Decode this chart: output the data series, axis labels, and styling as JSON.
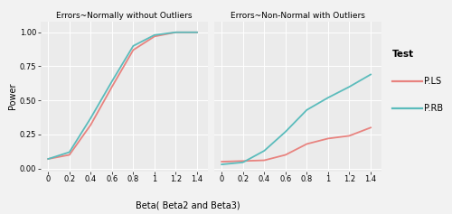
{
  "panel1_title": "Errors~Normally without Outliers",
  "panel2_title": "Errors~Non-Normal with Outliers",
  "xlabel": "Beta( Beta2 and Beta3)",
  "ylabel": "Power",
  "legend_title": "Test",
  "legend_labels": [
    "P.LS",
    "P.RB"
  ],
  "color_pls": "#E8837F",
  "color_prb": "#5BBCBC",
  "x_ticks": [
    0,
    0.2,
    0.4,
    0.6,
    0.8,
    1,
    1.2,
    1.4
  ],
  "x_ticklabels": [
    "0",
    "0.2",
    "0.4",
    "0.6",
    "0.8",
    "1",
    "1.2",
    "1.4"
  ],
  "y_ticks": [
    0.0,
    0.25,
    0.5,
    0.75,
    1.0
  ],
  "y_ticklabels": [
    "0.00",
    "0.25",
    "0.50",
    "0.75",
    "1.00"
  ],
  "ylim": [
    -0.02,
    1.08
  ],
  "xlim": [
    -0.07,
    1.5
  ],
  "panel1_pls_x": [
    0,
    0.2,
    0.4,
    0.6,
    0.8,
    1.0,
    1.2,
    1.4
  ],
  "panel1_pls_y": [
    0.07,
    0.1,
    0.32,
    0.6,
    0.87,
    0.97,
    1.0,
    1.0
  ],
  "panel1_prb_x": [
    0,
    0.2,
    0.4,
    0.6,
    0.8,
    1.0,
    1.2,
    1.4
  ],
  "panel1_prb_y": [
    0.07,
    0.12,
    0.37,
    0.64,
    0.9,
    0.98,
    1.0,
    1.0
  ],
  "panel2_pls_x": [
    0,
    0.2,
    0.4,
    0.6,
    0.8,
    1.0,
    1.2,
    1.4
  ],
  "panel2_pls_y": [
    0.05,
    0.055,
    0.06,
    0.1,
    0.18,
    0.22,
    0.24,
    0.3
  ],
  "panel2_prb_x": [
    0,
    0.2,
    0.4,
    0.6,
    0.8,
    1.0,
    1.2,
    1.4
  ],
  "panel2_prb_y": [
    0.03,
    0.045,
    0.13,
    0.27,
    0.43,
    0.52,
    0.6,
    0.69
  ],
  "panel_bg": "#EBEBEB",
  "fig_bg": "#F2F2F2",
  "grid_color": "#FFFFFF",
  "line_width": 1.3,
  "title_fontsize": 6.5,
  "axis_label_fontsize": 7.0,
  "tick_fontsize": 6.0,
  "legend_fontsize": 7.0,
  "legend_title_fontsize": 7.5
}
